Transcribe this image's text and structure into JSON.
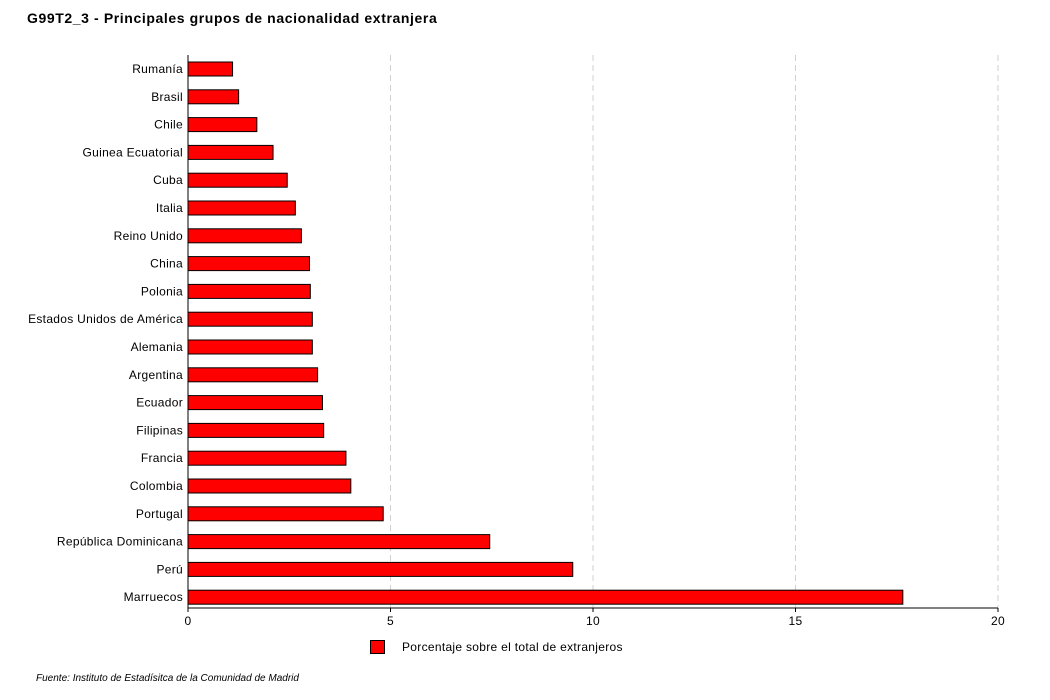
{
  "title": "G99T2_3 - Principales grupos de nacionalidad extranjera",
  "source": "Fuente: Instituto de Estadísitca de la Comunidad de Madrid",
  "colors": {
    "bar": "#ff0000",
    "bar_border": "#000000",
    "grid": "#d0d0d0"
  },
  "chart_data": {
    "type": "bar",
    "orientation": "horizontal",
    "categories": [
      "Rumanía",
      "Brasil",
      "Chile",
      "Guinea Ecuatorial",
      "Cuba",
      "Italia",
      "Reino Unido",
      "China",
      "Polonia",
      "Estados Unidos de América",
      "Alemania",
      "Argentina",
      "Ecuador",
      "Filipinas",
      "Francia",
      "Colombia",
      "Portugal",
      "República Dominicana",
      "Perú",
      "Marruecos"
    ],
    "series": [
      {
        "name": "Porcentaje sobre el total de extranjeros",
        "values": [
          1.1,
          1.25,
          1.7,
          2.1,
          2.45,
          2.65,
          2.8,
          3.0,
          3.02,
          3.07,
          3.07,
          3.2,
          3.32,
          3.35,
          3.9,
          4.02,
          4.82,
          7.45,
          9.5,
          17.65
        ]
      }
    ],
    "xlim": [
      0,
      20
    ],
    "xticks": [
      0,
      5,
      10,
      15,
      20
    ],
    "xlabel": "",
    "ylabel": "",
    "grid": "vertical dashed",
    "legend": "bottom-center"
  }
}
